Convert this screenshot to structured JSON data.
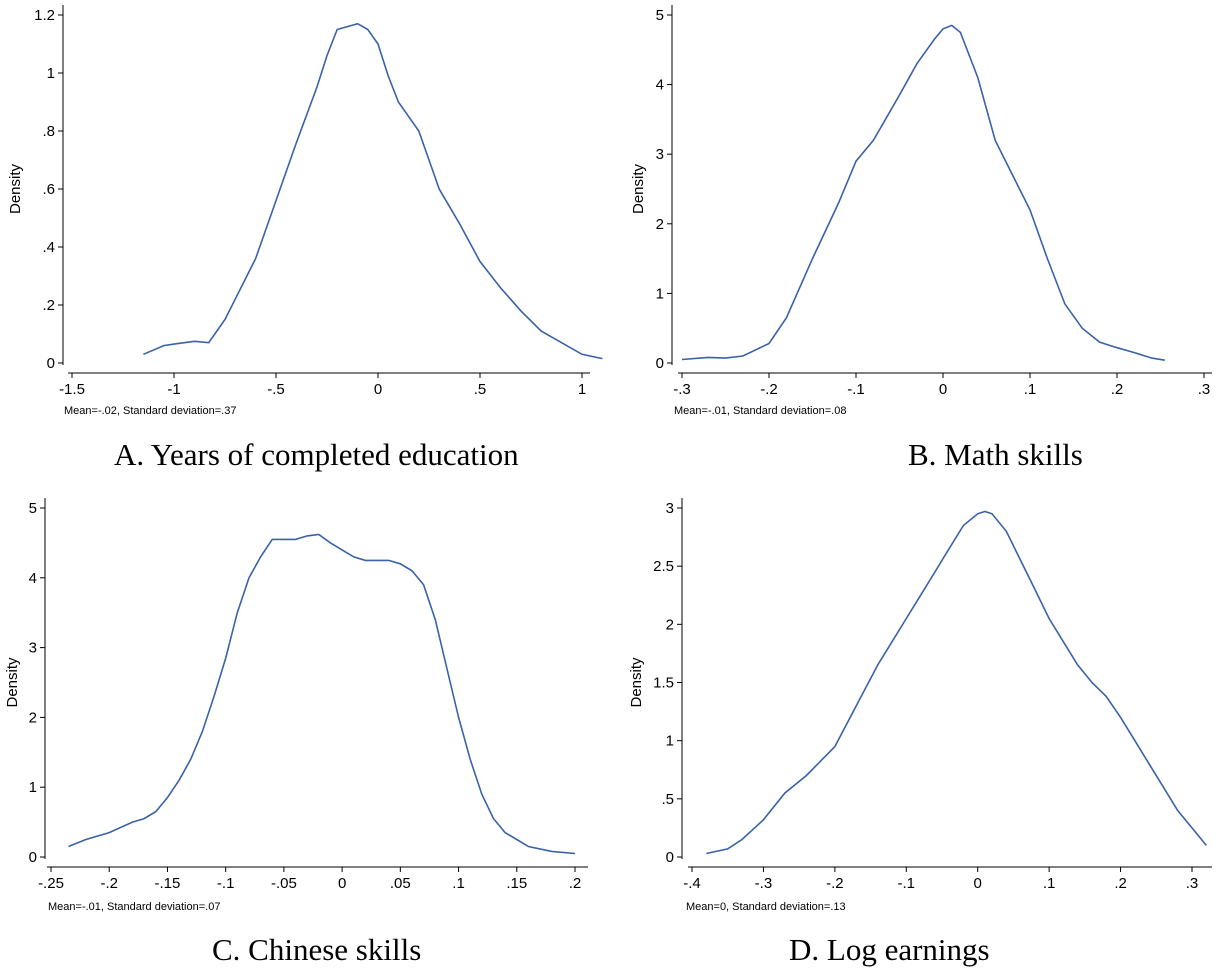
{
  "panels": [
    {
      "caption": "A. Years of completed education",
      "note": "Mean=-.02, Standard deviation=.37",
      "chart_data": {
        "type": "line",
        "title": "",
        "xlabel": "",
        "ylabel": "Density",
        "xlim": [
          -1.5,
          1.1
        ],
        "ylim": [
          0,
          1.2
        ],
        "x_ticks": [
          -1.5,
          -1,
          -0.5,
          0,
          0.5,
          1
        ],
        "x_tick_labels": [
          "-1.5",
          "-1",
          "-.5",
          "0",
          ".5",
          "1"
        ],
        "y_ticks": [
          0,
          0.2,
          0.4,
          0.6,
          0.8,
          1,
          1.2
        ],
        "y_tick_labels": [
          "0",
          ".2",
          ".4",
          ".6",
          ".8",
          "1",
          "1.2"
        ],
        "series": [
          {
            "x": [
              -1.15,
              -1.05,
              -1.0,
              -0.9,
              -0.83,
              -0.8,
              -0.75,
              -0.7,
              -0.6,
              -0.5,
              -0.4,
              -0.3,
              -0.25,
              -0.2,
              -0.15,
              -0.1,
              -0.05,
              0.0,
              0.05,
              0.1,
              0.2,
              0.25,
              0.3,
              0.4,
              0.5,
              0.6,
              0.7,
              0.8,
              0.9,
              1.0,
              1.1
            ],
            "y": [
              0.03,
              0.06,
              0.065,
              0.075,
              0.07,
              0.1,
              0.15,
              0.22,
              0.36,
              0.56,
              0.76,
              0.95,
              1.06,
              1.15,
              1.16,
              1.17,
              1.15,
              1.1,
              0.99,
              0.9,
              0.8,
              0.7,
              0.6,
              0.48,
              0.35,
              0.26,
              0.18,
              0.11,
              0.07,
              0.03,
              0.015
            ]
          }
        ]
      }
    },
    {
      "caption": "B. Math skills",
      "note": "Mean=-.01, Standard deviation=.08",
      "chart_data": {
        "type": "line",
        "title": "",
        "xlabel": "",
        "ylabel": "Density",
        "xlim": [
          -0.3,
          0.3
        ],
        "ylim": [
          0,
          5
        ],
        "x_ticks": [
          -0.3,
          -0.2,
          -0.1,
          0,
          0.1,
          0.2,
          0.3
        ],
        "x_tick_labels": [
          "-.3",
          "-.2",
          "-.1",
          "0",
          ".1",
          ".2",
          ".3"
        ],
        "y_ticks": [
          0,
          1,
          2,
          3,
          4,
          5
        ],
        "y_tick_labels": [
          "0",
          "1",
          "2",
          "3",
          "4",
          "5"
        ],
        "series": [
          {
            "x": [
              -0.3,
              -0.27,
              -0.25,
              -0.23,
              -0.2,
              -0.18,
              -0.15,
              -0.12,
              -0.1,
              -0.08,
              -0.05,
              -0.03,
              -0.01,
              0.0,
              0.01,
              0.02,
              0.04,
              0.06,
              0.08,
              0.1,
              0.12,
              0.14,
              0.16,
              0.18,
              0.2,
              0.22,
              0.24,
              0.255
            ],
            "y": [
              0.05,
              0.08,
              0.07,
              0.1,
              0.28,
              0.65,
              1.5,
              2.3,
              2.9,
              3.2,
              3.85,
              4.3,
              4.65,
              4.8,
              4.85,
              4.75,
              4.1,
              3.2,
              2.7,
              2.2,
              1.5,
              0.85,
              0.5,
              0.3,
              0.22,
              0.15,
              0.07,
              0.04
            ]
          }
        ]
      }
    },
    {
      "caption": "C. Chinese skills",
      "note": "Mean=-.01, Standard deviation=.07",
      "chart_data": {
        "type": "line",
        "title": "",
        "xlabel": "",
        "ylabel": "Density",
        "xlim": [
          -0.25,
          0.2
        ],
        "ylim": [
          0,
          5
        ],
        "x_ticks": [
          -0.25,
          -0.2,
          -0.15,
          -0.1,
          -0.05,
          0,
          0.05,
          0.1,
          0.15,
          0.2
        ],
        "x_tick_labels": [
          "-.25",
          "-.2",
          "-.15",
          "-.1",
          "-.05",
          "0",
          ".05",
          ".1",
          ".15",
          ".2"
        ],
        "y_ticks": [
          0,
          1,
          2,
          3,
          4,
          5
        ],
        "y_tick_labels": [
          "0",
          "1",
          "2",
          "3",
          "4",
          "5"
        ],
        "series": [
          {
            "x": [
              -0.235,
              -0.22,
              -0.2,
              -0.18,
              -0.17,
              -0.16,
              -0.15,
              -0.14,
              -0.13,
              -0.12,
              -0.11,
              -0.1,
              -0.09,
              -0.08,
              -0.07,
              -0.06,
              -0.05,
              -0.04,
              -0.03,
              -0.02,
              -0.01,
              0.0,
              0.01,
              0.02,
              0.03,
              0.04,
              0.05,
              0.06,
              0.07,
              0.08,
              0.09,
              0.1,
              0.11,
              0.12,
              0.13,
              0.14,
              0.15,
              0.16,
              0.18,
              0.2
            ],
            "y": [
              0.15,
              0.25,
              0.35,
              0.5,
              0.55,
              0.65,
              0.85,
              1.1,
              1.4,
              1.8,
              2.3,
              2.85,
              3.5,
              4.0,
              4.3,
              4.55,
              4.55,
              4.55,
              4.6,
              4.62,
              4.5,
              4.4,
              4.3,
              4.25,
              4.25,
              4.25,
              4.2,
              4.1,
              3.9,
              3.4,
              2.7,
              2.0,
              1.4,
              0.9,
              0.55,
              0.35,
              0.25,
              0.15,
              0.08,
              0.05
            ]
          }
        ]
      }
    },
    {
      "caption": "D. Log earnings",
      "note": "Mean=0, Standard deviation=.13",
      "chart_data": {
        "type": "line",
        "title": "",
        "xlabel": "",
        "ylabel": "Density",
        "xlim": [
          -0.4,
          0.32
        ],
        "ylim": [
          0,
          3
        ],
        "x_ticks": [
          -0.4,
          -0.3,
          -0.2,
          -0.1,
          0,
          0.1,
          0.2,
          0.3
        ],
        "x_tick_labels": [
          "-.4",
          "-.3",
          "-.2",
          "-.1",
          "0",
          ".1",
          ".2",
          ".3"
        ],
        "y_ticks": [
          0,
          0.5,
          1,
          1.5,
          2,
          2.5,
          3
        ],
        "y_tick_labels": [
          "0",
          ".5",
          "1",
          "1.5",
          "2",
          "2.5",
          "3"
        ],
        "series": [
          {
            "x": [
              -0.38,
              -0.35,
              -0.33,
              -0.3,
              -0.27,
              -0.24,
              -0.2,
              -0.17,
              -0.14,
              -0.12,
              -0.1,
              -0.08,
              -0.06,
              -0.04,
              -0.02,
              0.0,
              0.01,
              0.02,
              0.04,
              0.06,
              0.08,
              0.1,
              0.12,
              0.14,
              0.16,
              0.18,
              0.2,
              0.22,
              0.24,
              0.26,
              0.28,
              0.3,
              0.32
            ],
            "y": [
              0.03,
              0.07,
              0.15,
              0.32,
              0.55,
              0.7,
              0.95,
              1.3,
              1.65,
              1.85,
              2.05,
              2.25,
              2.45,
              2.65,
              2.85,
              2.95,
              2.97,
              2.95,
              2.8,
              2.55,
              2.3,
              2.05,
              1.85,
              1.65,
              1.5,
              1.38,
              1.2,
              1.0,
              0.8,
              0.6,
              0.4,
              0.25,
              0.1
            ]
          }
        ]
      }
    }
  ]
}
